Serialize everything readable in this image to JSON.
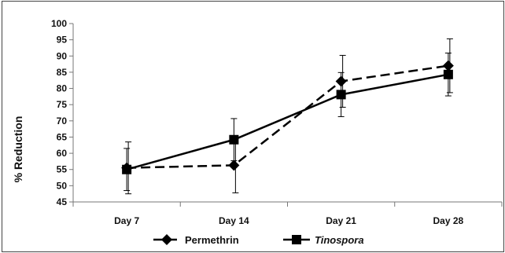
{
  "chart_data": {
    "type": "line",
    "title": "",
    "xlabel": "",
    "ylabel": "% Reduction",
    "categories": [
      "Day 7",
      "Day 14",
      "Day 21",
      "Day 28"
    ],
    "ylim": [
      45,
      100
    ],
    "yticks": [
      45,
      50,
      55,
      60,
      65,
      70,
      75,
      80,
      85,
      90,
      95,
      100
    ],
    "grid": false,
    "legend_position": "bottom",
    "series": [
      {
        "name": "Permethrin",
        "values": [
          55.5,
          56.3,
          82.2,
          87.0
        ],
        "error": [
          8.0,
          8.5,
          8.0,
          8.3
        ],
        "line_style": "dashed",
        "marker": "diamond",
        "color": "#000000"
      },
      {
        "name": "Tinospora",
        "values": [
          55.0,
          64.2,
          78.1,
          84.3
        ],
        "error": [
          6.5,
          6.5,
          6.8,
          6.6
        ],
        "line_style": "solid",
        "marker": "square",
        "color": "#000000"
      }
    ]
  }
}
